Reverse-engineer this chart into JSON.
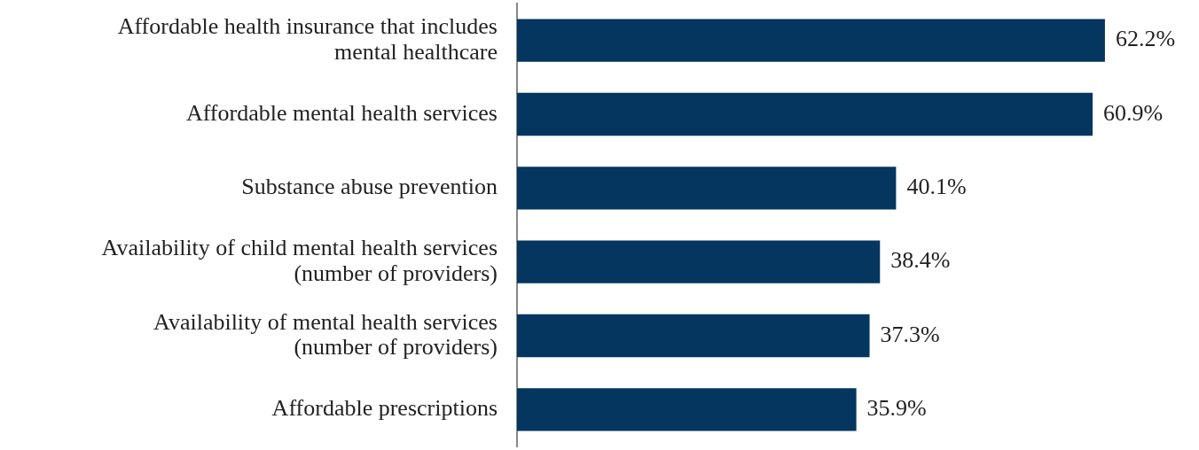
{
  "chart_data": {
    "type": "bar",
    "orientation": "horizontal",
    "categories": [
      "Affordable health insurance that includes mental healthcare",
      "Affordable mental health services",
      "Substance abuse prevention",
      "Availability of child mental health services (number of providers)",
      "Availability of mental health services (number of providers)",
      "Affordable prescriptions"
    ],
    "values": [
      62.2,
      60.9,
      40.1,
      38.4,
      37.3,
      35.9
    ],
    "value_labels": [
      "62.2%",
      "60.9%",
      "40.1%",
      "38.4%",
      "37.3%",
      "35.9%"
    ],
    "color": "#04365f",
    "legend": false
  }
}
